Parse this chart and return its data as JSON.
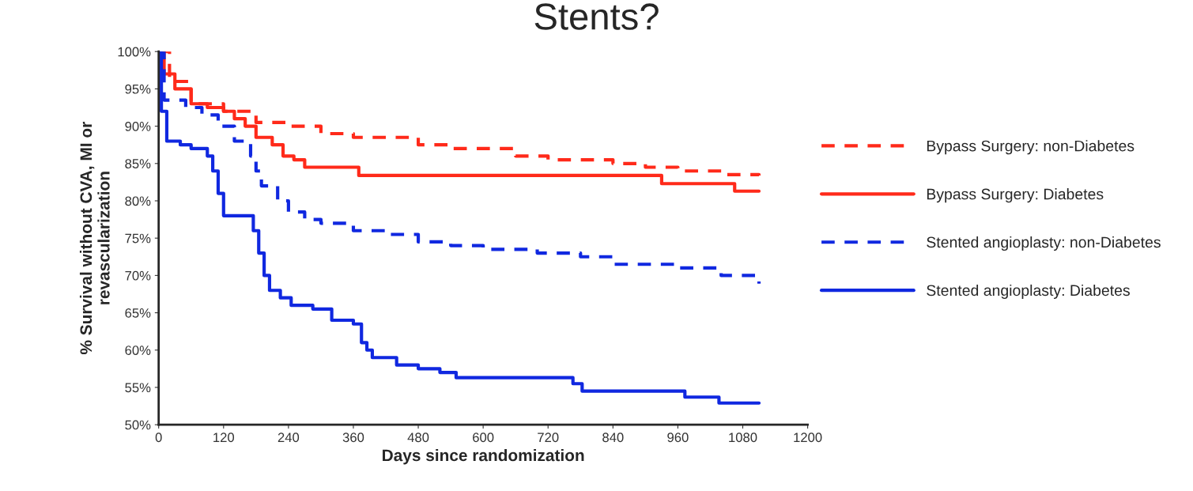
{
  "chart_data": {
    "type": "step",
    "title": "Stents?",
    "xlabel": "Days since randomization",
    "ylabel": "% Survival without CVA, MI or\nrevascularization",
    "xlim": [
      0,
      1200
    ],
    "xticks": [
      0,
      120,
      240,
      360,
      480,
      600,
      720,
      840,
      960,
      1080,
      1200
    ],
    "ylim": [
      50,
      100
    ],
    "yticks": [
      {
        "value": 50,
        "label": "50%"
      },
      {
        "value": 55,
        "label": "55%"
      },
      {
        "value": 60,
        "label": "60%"
      },
      {
        "value": 65,
        "label": "65%"
      },
      {
        "value": 70,
        "label": "70%"
      },
      {
        "value": 75,
        "label": "75%"
      },
      {
        "value": 80,
        "label": "80%"
      },
      {
        "value": 85,
        "label": "85%"
      },
      {
        "value": 90,
        "label": "90%"
      },
      {
        "value": 95,
        "label": "95%"
      },
      {
        "value": 100,
        "label": "100%"
      }
    ],
    "grid": false,
    "legend": "right",
    "series": [
      {
        "name": "Bypass Surgery: non-Diabetes",
        "color": "#ff2a1a",
        "line_style": "dashed",
        "x": [
          0,
          20,
          60,
          120,
          180,
          240,
          300,
          360,
          480,
          540,
          660,
          720,
          840,
          900,
          960,
          1050,
          1110
        ],
        "values": [
          100,
          96,
          93,
          92,
          90.5,
          90,
          89,
          88.5,
          87.5,
          87,
          86,
          85.5,
          85,
          84.5,
          84,
          83.5,
          83.4
        ]
      },
      {
        "name": "Bypass Surgery: Diabetes",
        "color": "#ff2a1a",
        "line_style": "solid",
        "x": [
          0,
          10,
          30,
          60,
          90,
          120,
          140,
          160,
          180,
          210,
          230,
          250,
          270,
          370,
          930,
          1065,
          1110
        ],
        "values": [
          100,
          97,
          95,
          93,
          92.5,
          92,
          91,
          90,
          88.5,
          87.5,
          86,
          85.5,
          84.5,
          83.4,
          82.3,
          81.3,
          81.3
        ]
      },
      {
        "name": "Stented angioplasty: non-Diabetes",
        "color": "#1028e0",
        "line_style": "dashed",
        "x": [
          0,
          10,
          50,
          80,
          110,
          140,
          170,
          180,
          190,
          220,
          240,
          270,
          300,
          360,
          420,
          480,
          540,
          600,
          700,
          780,
          840,
          960,
          1040,
          1110
        ],
        "values": [
          100,
          93.5,
          92.5,
          91.5,
          90,
          88,
          86,
          84,
          82,
          80,
          78.5,
          77.5,
          77,
          76,
          75.5,
          74.5,
          74,
          73.5,
          73,
          72.5,
          71.5,
          71,
          70,
          68.9
        ]
      },
      {
        "name": "Stented angioplasty: Diabetes",
        "color": "#1028e0",
        "line_style": "solid",
        "x": [
          0,
          5,
          15,
          40,
          60,
          90,
          100,
          110,
          120,
          165,
          175,
          185,
          195,
          205,
          225,
          245,
          285,
          320,
          360,
          375,
          385,
          395,
          440,
          480,
          520,
          550,
          766,
          783,
          973,
          1036,
          1110
        ],
        "values": [
          100,
          92,
          88,
          87.5,
          87,
          86,
          84,
          81,
          78,
          78,
          76,
          73,
          70,
          68,
          67,
          66,
          65.5,
          64,
          63.5,
          61,
          60,
          59,
          58,
          57.5,
          57,
          56.3,
          55.5,
          54.5,
          53.7,
          52.9,
          52.9
        ]
      }
    ]
  }
}
